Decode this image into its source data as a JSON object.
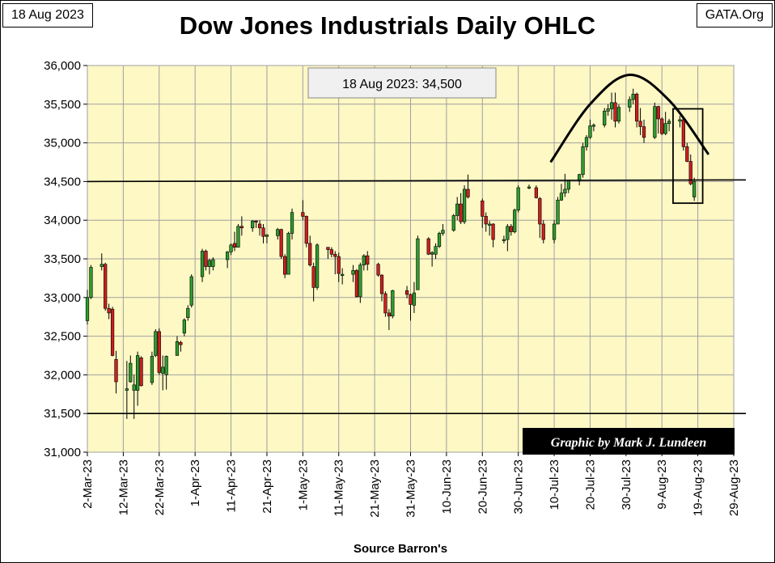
{
  "header": {
    "date": "18 Aug 2023",
    "site": "GATA.Org",
    "title": "Dow Jones Industrials Daily OHLC"
  },
  "footer": {
    "source": "Source Barron's"
  },
  "chart_data": {
    "type": "candlestick",
    "title": "Dow Jones Industrials Daily OHLC",
    "xlabel": "Source Barron's",
    "ylabel": "",
    "ylim": [
      31000,
      36000
    ],
    "y_ticks": [
      31000,
      31500,
      32000,
      32500,
      33000,
      33500,
      34000,
      34500,
      35000,
      35500,
      36000
    ],
    "y_tick_labels": [
      "31,000",
      "31,500",
      "32,000",
      "32,500",
      "33,000",
      "33,500",
      "34,000",
      "34,500",
      "35,000",
      "35,500",
      "36,000"
    ],
    "x_range": [
      "2023-03-02",
      "2023-08-29"
    ],
    "x_ticks": [
      "2023-03-02",
      "2023-03-12",
      "2023-03-22",
      "2023-04-01",
      "2023-04-11",
      "2023-04-21",
      "2023-05-01",
      "2023-05-11",
      "2023-05-21",
      "2023-05-31",
      "2023-06-10",
      "2023-06-20",
      "2023-06-30",
      "2023-07-10",
      "2023-07-20",
      "2023-07-30",
      "2023-08-09",
      "2023-08-19",
      "2023-08-29"
    ],
    "x_tick_labels": [
      "2-Mar-23",
      "12-Mar-23",
      "22-Mar-23",
      "1-Apr-23",
      "11-Apr-23",
      "21-Apr-23",
      "1-May-23",
      "11-May-23",
      "21-May-23",
      "31-May-23",
      "10-Jun-23",
      "20-Jun-23",
      "30-Jun-23",
      "10-Jul-23",
      "20-Jul-23",
      "30-Jul-23",
      "9-Aug-23",
      "19-Aug-23",
      "29-Aug-23"
    ],
    "grid": true,
    "colors": {
      "up": "#2e9c2e",
      "down": "#cc1f1f",
      "plot_bg": "#fdf8c4",
      "grid": "#a0a0a0"
    },
    "annotations": {
      "label": "18 Aug 2023: 34,500",
      "credit": "Graphic by Mark J. Lundeen",
      "horizontal_lines": [
        34500,
        31500
      ],
      "highlight_box": {
        "x0": "2023-08-13",
        "x1": "2023-08-19",
        "y0": 34220,
        "y1": 35440
      },
      "arc": [
        {
          "date": "2023-07-09",
          "value": 34750
        },
        {
          "date": "2023-07-20",
          "value": 35500
        },
        {
          "date": "2023-07-31",
          "value": 35880
        },
        {
          "date": "2023-08-11",
          "value": 35550
        },
        {
          "date": "2023-08-22",
          "value": 34850
        }
      ]
    },
    "ohlc": [
      {
        "date": "2023-03-02",
        "open": 32700,
        "high": 33100,
        "low": 32650,
        "close": 33000
      },
      {
        "date": "2023-03-03",
        "open": 33000,
        "high": 33420,
        "low": 32980,
        "close": 33390
      },
      {
        "date": "2023-03-06",
        "open": 33400,
        "high": 33570,
        "low": 33350,
        "close": 33430
      },
      {
        "date": "2023-03-07",
        "open": 33430,
        "high": 33450,
        "low": 32830,
        "close": 32860
      },
      {
        "date": "2023-03-08",
        "open": 32860,
        "high": 32920,
        "low": 32720,
        "close": 32800
      },
      {
        "date": "2023-03-09",
        "open": 32850,
        "high": 32880,
        "low": 32240,
        "close": 32250
      },
      {
        "date": "2023-03-10",
        "open": 32200,
        "high": 32310,
        "low": 31760,
        "close": 31910
      },
      {
        "date": "2023-03-13",
        "open": 31800,
        "high": 32180,
        "low": 31430,
        "close": 31820
      },
      {
        "date": "2023-03-14",
        "open": 31910,
        "high": 32250,
        "low": 31900,
        "close": 32150
      },
      {
        "date": "2023-03-15",
        "open": 31800,
        "high": 32000,
        "low": 31430,
        "close": 31870
      },
      {
        "date": "2023-03-16",
        "open": 31800,
        "high": 32300,
        "low": 31600,
        "close": 32250
      },
      {
        "date": "2023-03-17",
        "open": 32220,
        "high": 32240,
        "low": 31850,
        "close": 31860
      },
      {
        "date": "2023-03-20",
        "open": 31900,
        "high": 32300,
        "low": 31870,
        "close": 32240
      },
      {
        "date": "2023-03-21",
        "open": 32250,
        "high": 32590,
        "low": 32230,
        "close": 32560
      },
      {
        "date": "2023-03-22",
        "open": 32560,
        "high": 32600,
        "low": 32000,
        "close": 32030
      },
      {
        "date": "2023-03-23",
        "open": 32020,
        "high": 32250,
        "low": 31800,
        "close": 32100
      },
      {
        "date": "2023-03-24",
        "open": 32000,
        "high": 32250,
        "low": 31810,
        "close": 32240
      },
      {
        "date": "2023-03-27",
        "open": 32250,
        "high": 32500,
        "low": 32250,
        "close": 32430
      },
      {
        "date": "2023-03-28",
        "open": 32420,
        "high": 32440,
        "low": 32300,
        "close": 32390
      },
      {
        "date": "2023-03-29",
        "open": 32540,
        "high": 32730,
        "low": 32500,
        "close": 32710
      },
      {
        "date": "2023-03-30",
        "open": 32740,
        "high": 32900,
        "low": 32700,
        "close": 32860
      },
      {
        "date": "2023-03-31",
        "open": 32900,
        "high": 33300,
        "low": 32870,
        "close": 33270
      },
      {
        "date": "2023-04-03",
        "open": 33270,
        "high": 33630,
        "low": 33200,
        "close": 33600
      },
      {
        "date": "2023-04-04",
        "open": 33600,
        "high": 33620,
        "low": 33350,
        "close": 33400
      },
      {
        "date": "2023-04-05",
        "open": 33400,
        "high": 33500,
        "low": 33300,
        "close": 33480
      },
      {
        "date": "2023-04-06",
        "open": 33400,
        "high": 33520,
        "low": 33350,
        "close": 33490
      },
      {
        "date": "2023-04-10",
        "open": 33490,
        "high": 33600,
        "low": 33380,
        "close": 33590
      },
      {
        "date": "2023-04-11",
        "open": 33590,
        "high": 33700,
        "low": 33550,
        "close": 33680
      },
      {
        "date": "2023-04-12",
        "open": 33700,
        "high": 33850,
        "low": 33600,
        "close": 33650
      },
      {
        "date": "2023-04-13",
        "open": 33650,
        "high": 33950,
        "low": 33650,
        "close": 33920
      },
      {
        "date": "2023-04-14",
        "open": 33920,
        "high": 34050,
        "low": 33800,
        "close": 33900
      },
      {
        "date": "2023-04-17",
        "open": 33900,
        "high": 34000,
        "low": 33850,
        "close": 33990
      },
      {
        "date": "2023-04-18",
        "open": 33990,
        "high": 34000,
        "low": 33900,
        "close": 33980
      },
      {
        "date": "2023-04-19",
        "open": 33950,
        "high": 34000,
        "low": 33800,
        "close": 33900
      },
      {
        "date": "2023-04-20",
        "open": 33900,
        "high": 33950,
        "low": 33700,
        "close": 33790
      },
      {
        "date": "2023-04-21",
        "open": 33790,
        "high": 33820,
        "low": 33700,
        "close": 33810
      },
      {
        "date": "2023-04-24",
        "open": 33800,
        "high": 33900,
        "low": 33750,
        "close": 33880
      },
      {
        "date": "2023-04-25",
        "open": 33880,
        "high": 33890,
        "low": 33500,
        "close": 33530
      },
      {
        "date": "2023-04-26",
        "open": 33530,
        "high": 33560,
        "low": 33250,
        "close": 33300
      },
      {
        "date": "2023-04-27",
        "open": 33300,
        "high": 33850,
        "low": 33300,
        "close": 33830
      },
      {
        "date": "2023-04-28",
        "open": 33830,
        "high": 34150,
        "low": 33750,
        "close": 34100
      },
      {
        "date": "2023-05-01",
        "open": 34100,
        "high": 34260,
        "low": 34000,
        "close": 34050
      },
      {
        "date": "2023-05-02",
        "open": 34050,
        "high": 34060,
        "low": 33650,
        "close": 33700
      },
      {
        "date": "2023-05-03",
        "open": 33700,
        "high": 33800,
        "low": 33400,
        "close": 33420
      },
      {
        "date": "2023-05-04",
        "open": 33400,
        "high": 33450,
        "low": 32950,
        "close": 33130
      },
      {
        "date": "2023-05-05",
        "open": 33130,
        "high": 33700,
        "low": 33100,
        "close": 33680
      },
      {
        "date": "2023-05-08",
        "open": 33650,
        "high": 33650,
        "low": 33500,
        "close": 33620
      },
      {
        "date": "2023-05-09",
        "open": 33620,
        "high": 33650,
        "low": 33520,
        "close": 33560
      },
      {
        "date": "2023-05-10",
        "open": 33560,
        "high": 33600,
        "low": 33300,
        "close": 33530
      },
      {
        "date": "2023-05-11",
        "open": 33530,
        "high": 33580,
        "low": 33200,
        "close": 33310
      },
      {
        "date": "2023-05-12",
        "open": 33300,
        "high": 33380,
        "low": 33170,
        "close": 33300
      },
      {
        "date": "2023-05-15",
        "open": 33300,
        "high": 33420,
        "low": 33200,
        "close": 33350
      },
      {
        "date": "2023-05-16",
        "open": 33350,
        "high": 33370,
        "low": 33000,
        "close": 33010
      },
      {
        "date": "2023-05-17",
        "open": 33010,
        "high": 33450,
        "low": 32930,
        "close": 33420
      },
      {
        "date": "2023-05-18",
        "open": 33420,
        "high": 33560,
        "low": 33350,
        "close": 33540
      },
      {
        "date": "2023-05-19",
        "open": 33540,
        "high": 33600,
        "low": 33350,
        "close": 33430
      },
      {
        "date": "2023-05-22",
        "open": 33430,
        "high": 33450,
        "low": 33270,
        "close": 33290
      },
      {
        "date": "2023-05-23",
        "open": 33290,
        "high": 33300,
        "low": 32950,
        "close": 33050
      },
      {
        "date": "2023-05-24",
        "open": 33050,
        "high": 33080,
        "low": 32750,
        "close": 32800
      },
      {
        "date": "2023-05-25",
        "open": 32800,
        "high": 32850,
        "low": 32580,
        "close": 32760
      },
      {
        "date": "2023-05-26",
        "open": 32760,
        "high": 33100,
        "low": 32730,
        "close": 33090
      },
      {
        "date": "2023-05-30",
        "open": 33090,
        "high": 33150,
        "low": 32990,
        "close": 33040
      },
      {
        "date": "2023-05-31",
        "open": 33040,
        "high": 33050,
        "low": 32700,
        "close": 32910
      },
      {
        "date": "2023-06-01",
        "open": 32900,
        "high": 33200,
        "low": 32800,
        "close": 33060
      },
      {
        "date": "2023-06-02",
        "open": 33100,
        "high": 33800,
        "low": 33100,
        "close": 33760
      },
      {
        "date": "2023-06-05",
        "open": 33760,
        "high": 33780,
        "low": 33550,
        "close": 33560
      },
      {
        "date": "2023-06-06",
        "open": 33560,
        "high": 33600,
        "low": 33400,
        "close": 33580
      },
      {
        "date": "2023-06-07",
        "open": 33560,
        "high": 33700,
        "low": 33500,
        "close": 33660
      },
      {
        "date": "2023-06-08",
        "open": 33660,
        "high": 33850,
        "low": 33640,
        "close": 33830
      },
      {
        "date": "2023-06-09",
        "open": 33830,
        "high": 33950,
        "low": 33800,
        "close": 33870
      },
      {
        "date": "2023-06-12",
        "open": 33870,
        "high": 34080,
        "low": 33850,
        "close": 34060
      },
      {
        "date": "2023-06-13",
        "open": 34060,
        "high": 34300,
        "low": 34000,
        "close": 34210
      },
      {
        "date": "2023-06-14",
        "open": 34210,
        "high": 34350,
        "low": 33950,
        "close": 33980
      },
      {
        "date": "2023-06-15",
        "open": 33980,
        "high": 34450,
        "low": 33950,
        "close": 34400
      },
      {
        "date": "2023-06-16",
        "open": 34400,
        "high": 34590,
        "low": 34280,
        "close": 34300
      },
      {
        "date": "2023-06-20",
        "open": 34250,
        "high": 34280,
        "low": 33900,
        "close": 34050
      },
      {
        "date": "2023-06-21",
        "open": 34050,
        "high": 34100,
        "low": 33850,
        "close": 33950
      },
      {
        "date": "2023-06-22",
        "open": 33950,
        "high": 33990,
        "low": 33800,
        "close": 33950
      },
      {
        "date": "2023-06-23",
        "open": 33950,
        "high": 33960,
        "low": 33650,
        "close": 33750
      },
      {
        "date": "2023-06-26",
        "open": 33750,
        "high": 33800,
        "low": 33700,
        "close": 33750
      },
      {
        "date": "2023-06-27",
        "open": 33750,
        "high": 33950,
        "low": 33600,
        "close": 33920
      },
      {
        "date": "2023-06-28",
        "open": 33920,
        "high": 33950,
        "low": 33800,
        "close": 33850
      },
      {
        "date": "2023-06-29",
        "open": 33850,
        "high": 34150,
        "low": 33830,
        "close": 34130
      },
      {
        "date": "2023-06-30",
        "open": 34130,
        "high": 34450,
        "low": 34100,
        "close": 34420
      },
      {
        "date": "2023-07-03",
        "open": 34420,
        "high": 34460,
        "low": 34400,
        "close": 34430
      },
      {
        "date": "2023-07-05",
        "open": 34420,
        "high": 34450,
        "low": 34280,
        "close": 34290
      },
      {
        "date": "2023-07-06",
        "open": 34280,
        "high": 34300,
        "low": 33770,
        "close": 33950
      },
      {
        "date": "2023-07-07",
        "open": 33950,
        "high": 34000,
        "low": 33700,
        "close": 33750
      },
      {
        "date": "2023-07-10",
        "open": 33750,
        "high": 34000,
        "low": 33700,
        "close": 33950
      },
      {
        "date": "2023-07-11",
        "open": 33950,
        "high": 34300,
        "low": 33950,
        "close": 34260
      },
      {
        "date": "2023-07-12",
        "open": 34260,
        "high": 34470,
        "low": 34250,
        "close": 34350
      },
      {
        "date": "2023-07-13",
        "open": 34350,
        "high": 34600,
        "low": 34300,
        "close": 34400
      },
      {
        "date": "2023-07-14",
        "open": 34400,
        "high": 34500,
        "low": 34350,
        "close": 34510
      },
      {
        "date": "2023-07-17",
        "open": 34510,
        "high": 34600,
        "low": 34450,
        "close": 34590
      },
      {
        "date": "2023-07-18",
        "open": 34590,
        "high": 35000,
        "low": 34550,
        "close": 34950
      },
      {
        "date": "2023-07-19",
        "open": 34950,
        "high": 35100,
        "low": 34900,
        "close": 35070
      },
      {
        "date": "2023-07-20",
        "open": 35070,
        "high": 35300,
        "low": 35050,
        "close": 35220
      },
      {
        "date": "2023-07-21",
        "open": 35220,
        "high": 35250,
        "low": 35150,
        "close": 35230
      },
      {
        "date": "2023-07-24",
        "open": 35230,
        "high": 35450,
        "low": 35200,
        "close": 35410
      },
      {
        "date": "2023-07-25",
        "open": 35410,
        "high": 35500,
        "low": 35350,
        "close": 35440
      },
      {
        "date": "2023-07-26",
        "open": 35440,
        "high": 35650,
        "low": 35300,
        "close": 35520
      },
      {
        "date": "2023-07-27",
        "open": 35520,
        "high": 35650,
        "low": 35200,
        "close": 35280
      },
      {
        "date": "2023-07-28",
        "open": 35280,
        "high": 35500,
        "low": 35250,
        "close": 35460
      },
      {
        "date": "2023-07-31",
        "open": 35460,
        "high": 35600,
        "low": 35400,
        "close": 35560
      },
      {
        "date": "2023-08-01",
        "open": 35560,
        "high": 35700,
        "low": 35500,
        "close": 35630
      },
      {
        "date": "2023-08-02",
        "open": 35630,
        "high": 35650,
        "low": 35200,
        "close": 35280
      },
      {
        "date": "2023-08-03",
        "open": 35280,
        "high": 35450,
        "low": 35100,
        "close": 35210
      },
      {
        "date": "2023-08-04",
        "open": 35210,
        "high": 35300,
        "low": 35000,
        "close": 35070
      },
      {
        "date": "2023-08-07",
        "open": 35070,
        "high": 35520,
        "low": 35050,
        "close": 35470
      },
      {
        "date": "2023-08-08",
        "open": 35470,
        "high": 35480,
        "low": 35120,
        "close": 35310
      },
      {
        "date": "2023-08-09",
        "open": 35310,
        "high": 35330,
        "low": 35100,
        "close": 35120
      },
      {
        "date": "2023-08-10",
        "open": 35120,
        "high": 35400,
        "low": 35100,
        "close": 35250
      },
      {
        "date": "2023-08-11",
        "open": 35250,
        "high": 35310,
        "low": 35150,
        "close": 35280
      },
      {
        "date": "2023-08-14",
        "open": 35280,
        "high": 35350,
        "low": 35200,
        "close": 35300
      },
      {
        "date": "2023-08-15",
        "open": 35300,
        "high": 35300,
        "low": 34900,
        "close": 34950
      },
      {
        "date": "2023-08-16",
        "open": 34950,
        "high": 35000,
        "low": 34750,
        "close": 34760
      },
      {
        "date": "2023-08-17",
        "open": 34760,
        "high": 34850,
        "low": 34450,
        "close": 34470
      },
      {
        "date": "2023-08-18",
        "open": 34300,
        "high": 34550,
        "low": 34250,
        "close": 34500
      }
    ]
  }
}
